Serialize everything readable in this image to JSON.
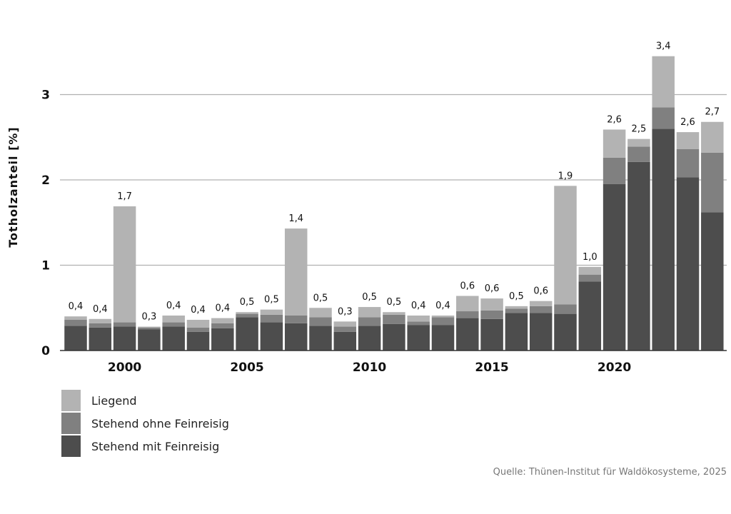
{
  "chart_data": {
    "type": "bar",
    "stacked": true,
    "ylabel": "Totholzanteil [%]",
    "xlabel": "",
    "ylim": [
      0,
      3.6
    ],
    "yticks": [
      0,
      1,
      2,
      3
    ],
    "xticks": [
      2000,
      2005,
      2010,
      2015,
      2020
    ],
    "grid": "horizontal",
    "legend_position": "bottom-left",
    "categories": [
      1998,
      1999,
      2000,
      2001,
      2002,
      2003,
      2004,
      2005,
      2006,
      2007,
      2008,
      2009,
      2010,
      2011,
      2012,
      2013,
      2014,
      2015,
      2016,
      2017,
      2018,
      2019,
      2020,
      2021,
      2022,
      2023,
      2024
    ],
    "series": [
      {
        "name": "Stehend mit Feinreisig",
        "color": "#4d4d4d",
        "values": [
          0.29,
          0.27,
          0.28,
          0.25,
          0.28,
          0.22,
          0.26,
          0.39,
          0.33,
          0.32,
          0.29,
          0.22,
          0.29,
          0.31,
          0.3,
          0.3,
          0.38,
          0.37,
          0.44,
          0.44,
          0.43,
          0.81,
          1.95,
          2.21,
          2.6,
          2.03,
          1.62
        ]
      },
      {
        "name": "Stehend ohne Feinreisig",
        "color": "#808080",
        "values": [
          0.07,
          0.05,
          0.05,
          0.02,
          0.05,
          0.05,
          0.06,
          0.04,
          0.09,
          0.09,
          0.1,
          0.06,
          0.1,
          0.11,
          0.04,
          0.09,
          0.08,
          0.1,
          0.05,
          0.08,
          0.11,
          0.08,
          0.31,
          0.18,
          0.25,
          0.33,
          0.7
        ]
      },
      {
        "name": "Liegend",
        "color": "#b3b3b3",
        "values": [
          0.04,
          0.05,
          1.36,
          0.01,
          0.08,
          0.09,
          0.06,
          0.02,
          0.06,
          1.02,
          0.11,
          0.06,
          0.12,
          0.03,
          0.07,
          0.02,
          0.18,
          0.14,
          0.03,
          0.06,
          1.39,
          0.09,
          0.33,
          0.09,
          0.6,
          0.2,
          0.36
        ]
      }
    ],
    "totals_labels": [
      "0,4",
      "0,4",
      "1,7",
      "0,3",
      "0,4",
      "0,4",
      "0,4",
      "0,5",
      "0,5",
      "1,4",
      "0,5",
      "0,3",
      "0,5",
      "0,5",
      "0,4",
      "0,4",
      "0,6",
      "0,6",
      "0,5",
      "0,6",
      "1,9",
      "1,0",
      "2,6",
      "2,5",
      "3,4",
      "2,6",
      "2,7"
    ],
    "tick_labels_y": [
      "0",
      "1",
      "2",
      "3"
    ],
    "tick_labels_x": [
      "2000",
      "2005",
      "2010",
      "2015",
      "2020"
    ]
  },
  "legend": [
    {
      "label": "Liegend",
      "color": "#b3b3b3"
    },
    {
      "label": "Stehend ohne Feinreisig",
      "color": "#808080"
    },
    {
      "label": "Stehend mit Feinreisig",
      "color": "#4d4d4d"
    }
  ],
  "source": "Quelle: Thünen-Institut für Waldökosysteme, 2025"
}
